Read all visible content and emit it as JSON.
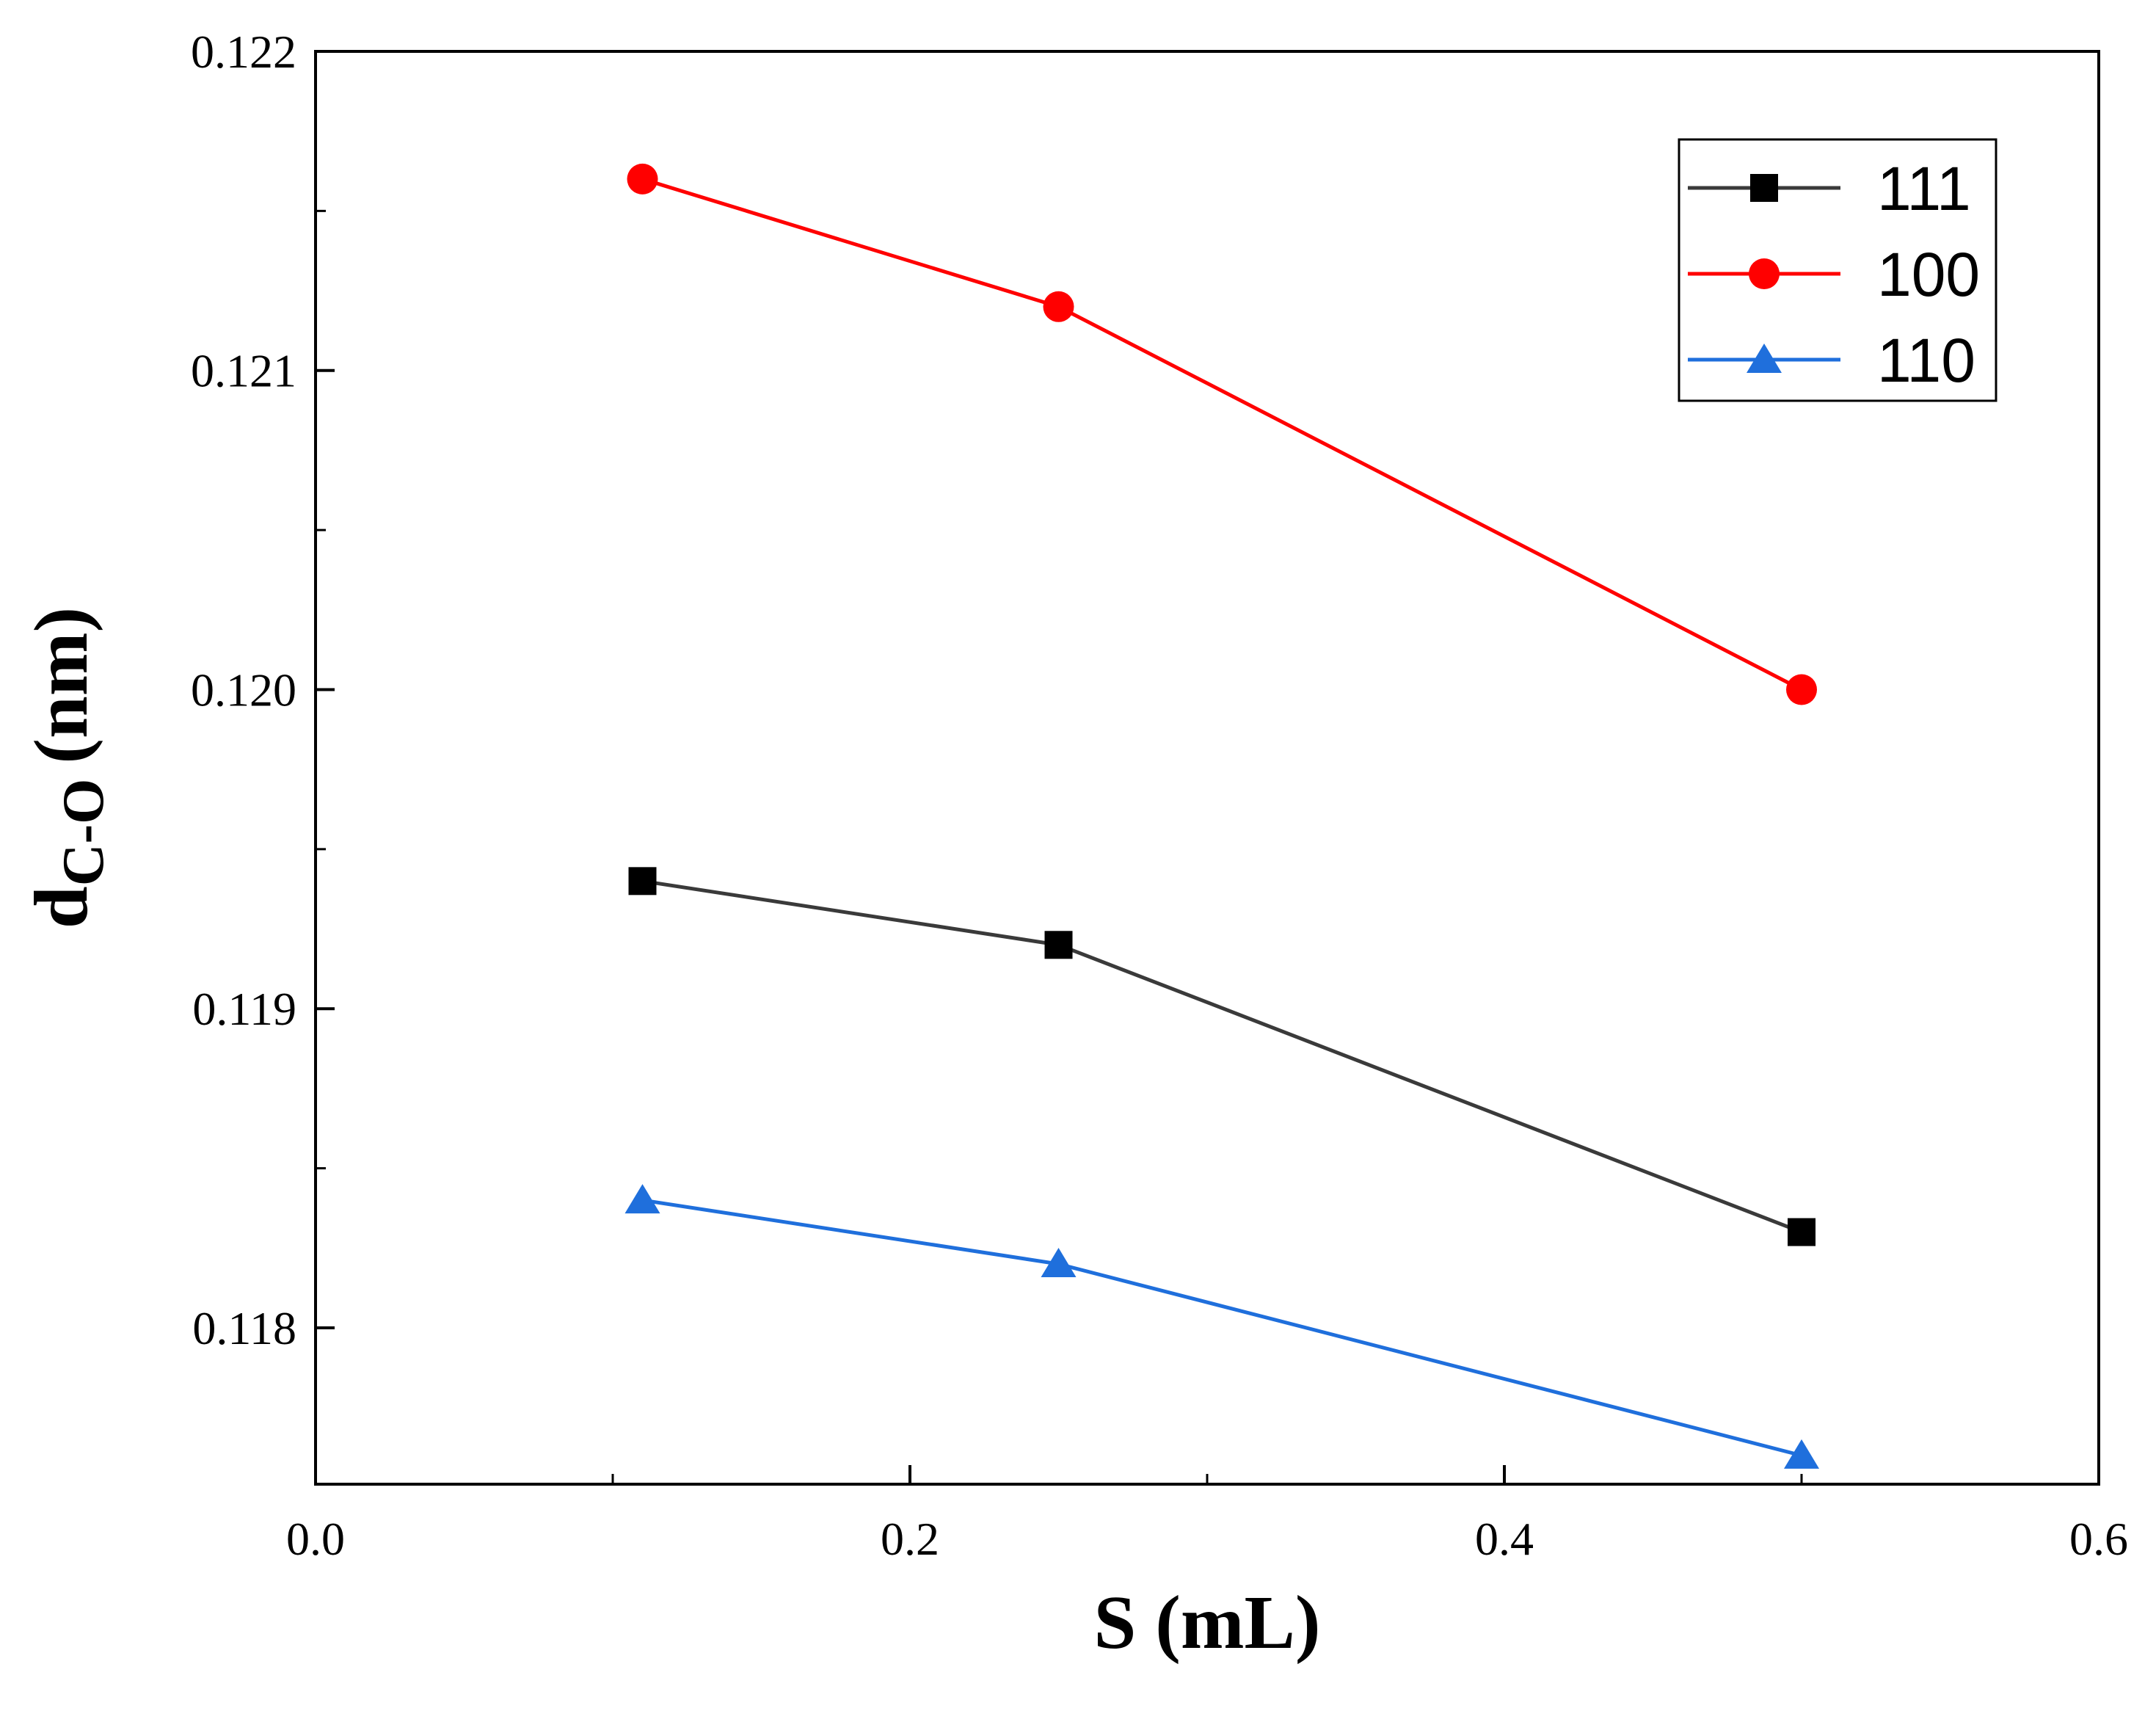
{
  "chart_data": {
    "type": "line",
    "title": "",
    "xlabel": "S (mL)",
    "ylabel_main": "d",
    "ylabel_sub": "C-O",
    "ylabel_unit": "(nm)",
    "xlim": [
      0.0,
      0.6
    ],
    "ylim": [
      0.11751,
      0.122
    ],
    "x_ticks": [
      0.0,
      0.2,
      0.4,
      0.6
    ],
    "x_tick_labels": [
      "0.0",
      "0.2",
      "0.4",
      "0.6"
    ],
    "x_minor_ticks": [
      0.1,
      0.3,
      0.5
    ],
    "y_ticks": [
      0.118,
      0.119,
      0.12,
      0.121,
      0.122
    ],
    "y_tick_labels": [
      "0.118",
      "0.119",
      "0.120",
      "0.121",
      "0.122"
    ],
    "y_minor_ticks": [
      0.1185,
      0.1195,
      0.1205,
      0.1215
    ],
    "legend_position": "top-right",
    "series": [
      {
        "name": "111",
        "color": "#3a3a3a",
        "marker": "square",
        "x": [
          0.11,
          0.25,
          0.5
        ],
        "y": [
          0.1194,
          0.1192,
          0.1183
        ]
      },
      {
        "name": "100",
        "color": "#ff0000",
        "marker": "circle",
        "x": [
          0.11,
          0.25,
          0.5
        ],
        "y": [
          0.1216,
          0.1212,
          0.12
        ]
      },
      {
        "name": "110",
        "color": "#1f6fdc",
        "marker": "triangle",
        "x": [
          0.11,
          0.25,
          0.5
        ],
        "y": [
          0.1184,
          0.1182,
          0.1176
        ]
      }
    ]
  }
}
